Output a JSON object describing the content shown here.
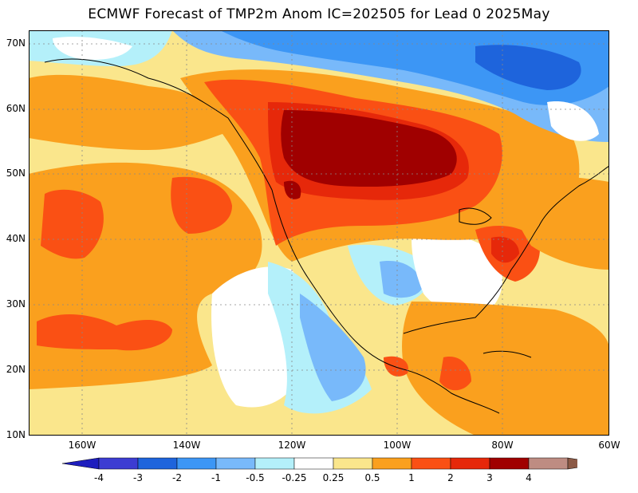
{
  "title": "ECMWF Forecast of TMP2m Anom IC=202505 for Lead 0 2025May",
  "map": {
    "lat_labels": [
      "70N",
      "60N",
      "50N",
      "40N",
      "30N",
      "20N",
      "10N"
    ],
    "lon_labels": [
      "160W",
      "140W",
      "120W",
      "100W",
      "80W",
      "60W"
    ],
    "ocean_color": "#ffffff",
    "palette": {
      "cold4": "#1e1ebe",
      "cold3": "#3c3cd2",
      "cold2": "#1e64dc",
      "cold1": "#3c96f5",
      "cool05": "#78b9fa",
      "cool025": "#b4f0fa",
      "warm025": "#fae68c",
      "warm05": "#faa01e",
      "warm1": "#fa5014",
      "warm2": "#e6280a",
      "warm3": "#a00000",
      "warm4": "#be8c82",
      "extreme": "#8c5a46"
    }
  },
  "colorbar": {
    "labels": [
      "-4",
      "-3",
      "-2",
      "-1",
      "-0.5",
      "-0.25",
      "0.25",
      "0.5",
      "1",
      "2",
      "3",
      "4"
    ],
    "colors": [
      "#1e1ebe",
      "#3c3cd2",
      "#1e64dc",
      "#3c96f5",
      "#78b9fa",
      "#b4f0fa",
      "#ffffff",
      "#fae68c",
      "#faa01e",
      "#fa5014",
      "#e6280a",
      "#a00000",
      "#be8c82",
      "#8c5a46"
    ]
  }
}
